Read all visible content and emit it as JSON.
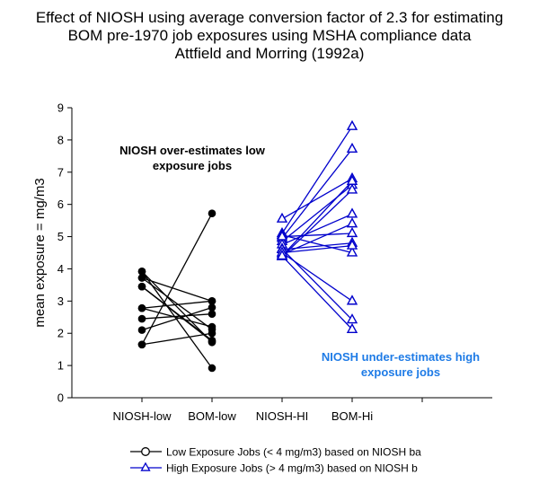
{
  "chart_data": {
    "type": "line",
    "title": "Effect of NIOSH using average conversion factor of 2.3 for estimating",
    "subtitle": "BOM pre-1970 job exposures using MSHA compliance data",
    "subtitle2": "Attfield and Morring (1992a)",
    "xlabel": "",
    "ylabel": "mean exposure = mg/m3",
    "ylim": [
      0,
      9
    ],
    "yticks": [
      0,
      1,
      2,
      3,
      4,
      5,
      6,
      7,
      8,
      9
    ],
    "categories": [
      "",
      "NIOSH-low",
      "BOM-low",
      "NIOSH-HI",
      "BOM-Hi",
      ""
    ],
    "grid": false,
    "legend_position": "bottom",
    "colors": {
      "low": "#000000",
      "high": "#0000cc",
      "annot_high": "#1e7be6"
    },
    "series": [
      {
        "name": "Low Exposure Jobs (< 4 mg/m3) based on NIOSH ba",
        "color": "#000000",
        "marker": "circle",
        "pairs": [
          [
            3.92,
            0.92
          ],
          [
            3.72,
            2.12
          ],
          [
            3.45,
            1.78
          ],
          [
            2.78,
            3.0
          ],
          [
            2.45,
            2.6
          ],
          [
            2.1,
            2.8
          ],
          [
            1.65,
            2.0
          ],
          [
            3.45,
            1.75
          ],
          [
            3.92,
            1.72
          ],
          [
            3.72,
            3.0
          ],
          [
            2.78,
            2.2
          ],
          [
            1.65,
            5.72
          ]
        ]
      },
      {
        "name": "High Exposure Jobs (> 4 mg/m3) based on NIOSH b",
        "color": "#0000cc",
        "marker": "triangle",
        "pairs": [
          [
            5.55,
            6.8
          ],
          [
            5.1,
            8.42
          ],
          [
            5.05,
            4.5
          ],
          [
            4.95,
            7.72
          ],
          [
            4.85,
            6.6
          ],
          [
            4.75,
            5.7
          ],
          [
            4.62,
            2.42
          ],
          [
            4.5,
            3.0
          ],
          [
            4.4,
            2.12
          ],
          [
            4.38,
            6.45
          ],
          [
            4.6,
            4.8
          ],
          [
            4.45,
            5.4
          ],
          [
            4.5,
            4.72
          ],
          [
            4.4,
            6.72
          ],
          [
            5.0,
            5.1
          ]
        ]
      }
    ],
    "annotations": [
      {
        "text_lines": [
          "NIOSH over-estimates low",
          "exposure jobs"
        ],
        "color": "#000000"
      },
      {
        "text_lines": [
          "NIOSH under-estimates high",
          "exposure jobs"
        ],
        "color": "#1e7be6"
      }
    ]
  }
}
